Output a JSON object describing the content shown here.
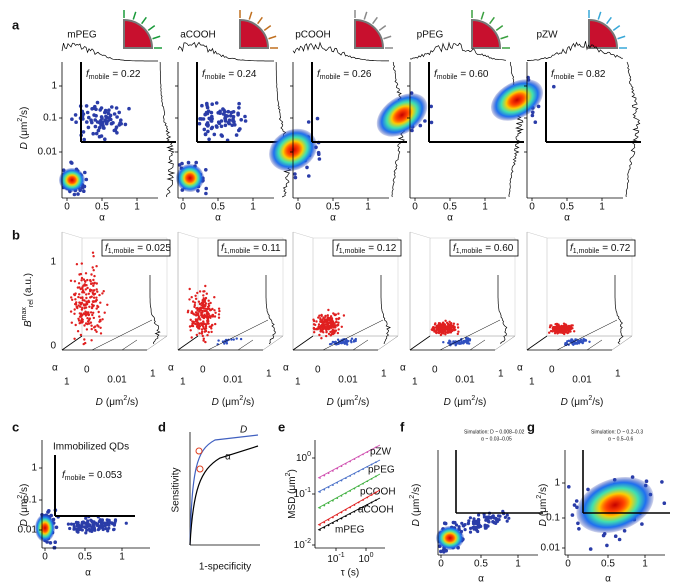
{
  "panel_a": {
    "label": "a",
    "y_label": {
      "var": "D",
      "open": "(μm",
      "sup": "2",
      "close": "/s)"
    },
    "x_label": "α",
    "f": "f",
    "f_sub": "mobile",
    "yticks": [
      "1",
      "0.1",
      "0.01"
    ],
    "xticks": [
      "0",
      "0.5",
      "1"
    ],
    "panels": [
      {
        "name": "mPEG",
        "f_value": "= 0.22"
      },
      {
        "name": "aCOOH",
        "f_value": "= 0.24"
      },
      {
        "name": "pCOOH",
        "f_value": "= 0.26"
      },
      {
        "name": "pPEG",
        "f_value": "= 0.60"
      },
      {
        "name": "pZW",
        "f_value": "= 0.82"
      }
    ]
  },
  "panel_b": {
    "label": "b",
    "y_label": {
      "var": "B",
      "sup": "max",
      "sub": "rel",
      "unit": "(a.u.)"
    },
    "f": "f",
    "f_sub": "1,mobile",
    "values": [
      "= 0.025",
      "= 0.11",
      "= 0.12",
      "= 0.60",
      "= 0.72"
    ],
    "vticks": [
      "1",
      "0"
    ],
    "alpha": "α",
    "alpha_ticks": [
      "1",
      "0"
    ],
    "d_ticks": [
      "0.01",
      "1"
    ]
  },
  "panel_c": {
    "label": "c",
    "title": "Immobilized QDs",
    "f_value": "= 0.053"
  },
  "panel_d": {
    "label": "d",
    "y_label": "Sensitivity",
    "x_label": "1-specificity",
    "curves": [
      "D",
      "α"
    ]
  },
  "panel_e": {
    "label": "e",
    "y_label": {
      "text": "MSD (μm",
      "sup": "2",
      "close": ")"
    },
    "x_label": "τ (s)",
    "yticks": [
      {
        "base": "10",
        "exp": "0"
      },
      {
        "base": "10",
        "exp": "-1"
      },
      {
        "base": "10",
        "exp": "-2"
      }
    ],
    "xticks": [
      {
        "base": "10",
        "exp": "-1"
      },
      {
        "base": "10",
        "exp": "0"
      }
    ],
    "series": [
      "pZW",
      "pPEG",
      "pCOOH",
      "aCOOH",
      "mPEG"
    ]
  },
  "panel_f": {
    "label": "f",
    "sim": [
      "Simulation: D ~ 0.008–0.02",
      "α ~ 0.03–0.05"
    ]
  },
  "panel_g": {
    "label": "g",
    "sim": [
      "Simulation: D ~ 0.2–0.3",
      "α ~ 0.5–0.6"
    ]
  }
}
